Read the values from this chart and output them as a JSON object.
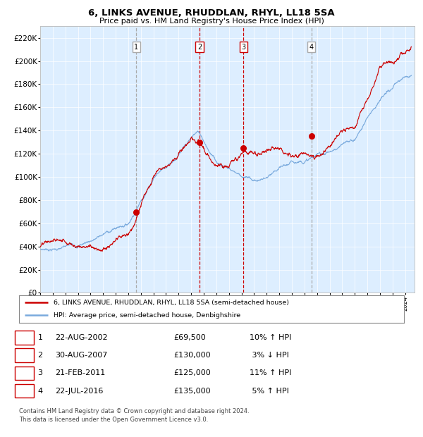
{
  "title": "6, LINKS AVENUE, RHUDDLAN, RHYL, LL18 5SA",
  "subtitle": "Price paid vs. HM Land Registry's House Price Index (HPI)",
  "legend_line1": "6, LINKS AVENUE, RHUDDLAN, RHYL, LL18 5SA (semi-detached house)",
  "legend_line2": "HPI: Average price, semi-detached house, Denbighshire",
  "footer1": "Contains HM Land Registry data © Crown copyright and database right 2024.",
  "footer2": "This data is licensed under the Open Government Licence v3.0.",
  "hpi_color": "#7aaadd",
  "price_color": "#cc0000",
  "dot_color": "#cc0000",
  "plot_bg": "#ddeeff",
  "sales": [
    {
      "label": "1",
      "date_str": "22-AUG-2002",
      "price": 69500,
      "pct": "10%",
      "dir": "↑",
      "x_year": 2002.64,
      "vline": "grey"
    },
    {
      "label": "2",
      "date_str": "30-AUG-2007",
      "price": 130000,
      "pct": "3%",
      "dir": "↓",
      "x_year": 2007.66,
      "vline": "red"
    },
    {
      "label": "3",
      "date_str": "21-FEB-2011",
      "price": 125000,
      "pct": "11%",
      "dir": "↑",
      "x_year": 2011.14,
      "vline": "red"
    },
    {
      "label": "4",
      "date_str": "22-JUL-2016",
      "price": 135000,
      "pct": "5%",
      "dir": "↑",
      "x_year": 2016.56,
      "vline": "grey"
    }
  ],
  "ylim": [
    0,
    230000
  ],
  "yticks": [
    0,
    20000,
    40000,
    60000,
    80000,
    100000,
    120000,
    140000,
    160000,
    180000,
    200000,
    220000
  ],
  "xlim_start": 1995.0,
  "xlim_end": 2024.75
}
